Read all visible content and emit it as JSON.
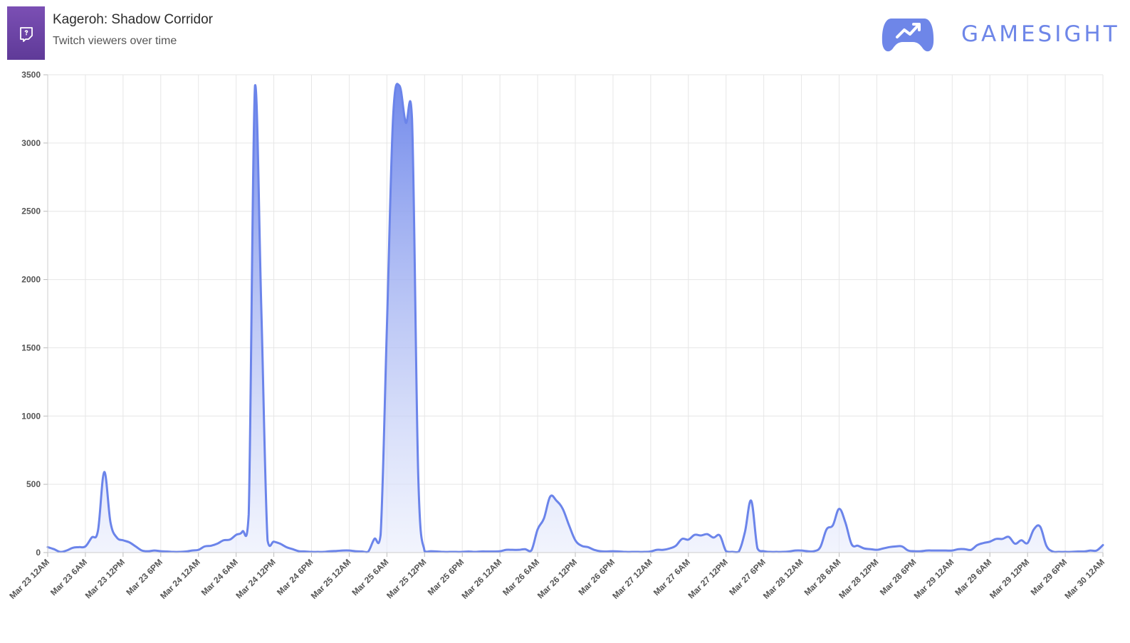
{
  "header": {
    "title": "Kageroh: Shadow Corridor",
    "subtitle": "Twitch viewers over time",
    "icon": "twitch-icon",
    "brand": "GAMESIGHT",
    "brand_icon": "gamepad-trend-icon"
  },
  "colors": {
    "line": "#6b84ea",
    "fill_top": "#6b84ea",
    "fill_bottom": "#e9edfc",
    "grid": "#e6e6e6",
    "brand": "#6e86e8",
    "game_icon_bg": "#6a43a6"
  },
  "chart_data": {
    "type": "area",
    "title": "",
    "xlabel": "",
    "ylabel": "",
    "ylim": [
      0,
      3500
    ],
    "yticks": [
      0,
      500,
      1000,
      1500,
      2000,
      2500,
      3000,
      3500
    ],
    "grid": true,
    "x_tick_labels": [
      "Mar 23 12AM",
      "Mar 23 6AM",
      "Mar 23 12PM",
      "Mar 23 6PM",
      "Mar 24 12AM",
      "Mar 24 6AM",
      "Mar 24 12PM",
      "Mar 24 6PM",
      "Mar 25 12AM",
      "Mar 25 6AM",
      "Mar 25 12PM",
      "Mar 25 6PM",
      "Mar 26 12AM",
      "Mar 26 6AM",
      "Mar 26 12PM",
      "Mar 26 6PM",
      "Mar 27 12AM",
      "Mar 27 6AM",
      "Mar 27 12PM",
      "Mar 27 6PM",
      "Mar 28 12AM",
      "Mar 28 6AM",
      "Mar 28 12PM",
      "Mar 28 6PM",
      "Mar 29 12AM",
      "Mar 29 6AM",
      "Mar 29 12PM",
      "Mar 29 6PM",
      "Mar 30 12AM"
    ],
    "x_unit": "hours since Mar 23 12AM",
    "series": [
      {
        "name": "Twitch viewers",
        "points": [
          [
            0,
            40
          ],
          [
            1,
            25
          ],
          [
            2,
            5
          ],
          [
            3,
            15
          ],
          [
            4,
            35
          ],
          [
            5,
            40
          ],
          [
            6,
            45
          ],
          [
            7,
            110
          ],
          [
            8,
            160
          ],
          [
            9,
            590
          ],
          [
            10,
            220
          ],
          [
            11,
            110
          ],
          [
            12,
            90
          ],
          [
            13,
            75
          ],
          [
            14,
            45
          ],
          [
            15,
            15
          ],
          [
            16,
            10
          ],
          [
            17,
            15
          ],
          [
            18,
            10
          ],
          [
            19,
            8
          ],
          [
            20,
            5
          ],
          [
            21,
            5
          ],
          [
            22,
            8
          ],
          [
            23,
            15
          ],
          [
            24,
            20
          ],
          [
            25,
            45
          ],
          [
            26,
            50
          ],
          [
            27,
            65
          ],
          [
            28,
            90
          ],
          [
            29,
            95
          ],
          [
            30,
            130
          ],
          [
            31,
            155
          ],
          [
            32,
            280
          ],
          [
            33,
            3420
          ],
          [
            34,
            1800
          ],
          [
            35,
            90
          ],
          [
            36,
            80
          ],
          [
            37,
            65
          ],
          [
            38,
            40
          ],
          [
            39,
            25
          ],
          [
            40,
            10
          ],
          [
            41,
            8
          ],
          [
            42,
            5
          ],
          [
            43,
            5
          ],
          [
            44,
            5
          ],
          [
            45,
            10
          ],
          [
            46,
            12
          ],
          [
            47,
            15
          ],
          [
            48,
            15
          ],
          [
            49,
            10
          ],
          [
            50,
            8
          ],
          [
            51,
            5
          ],
          [
            52,
            100
          ],
          [
            53,
            130
          ],
          [
            54,
            1650
          ],
          [
            55,
            3200
          ],
          [
            56,
            3420
          ],
          [
            57,
            3150
          ],
          [
            58,
            3180
          ],
          [
            59,
            550
          ],
          [
            60,
            10
          ],
          [
            61,
            10
          ],
          [
            62,
            8
          ],
          [
            63,
            5
          ],
          [
            64,
            5
          ],
          [
            65,
            5
          ],
          [
            66,
            5
          ],
          [
            67,
            8
          ],
          [
            68,
            5
          ],
          [
            69,
            8
          ],
          [
            70,
            8
          ],
          [
            71,
            8
          ],
          [
            72,
            10
          ],
          [
            73,
            20
          ],
          [
            74,
            20
          ],
          [
            75,
            20
          ],
          [
            76,
            25
          ],
          [
            77,
            15
          ],
          [
            78,
            170
          ],
          [
            79,
            250
          ],
          [
            80,
            410
          ],
          [
            81,
            380
          ],
          [
            82,
            320
          ],
          [
            83,
            200
          ],
          [
            84,
            90
          ],
          [
            85,
            50
          ],
          [
            86,
            40
          ],
          [
            87,
            20
          ],
          [
            88,
            10
          ],
          [
            89,
            8
          ],
          [
            90,
            10
          ],
          [
            91,
            8
          ],
          [
            92,
            5
          ],
          [
            93,
            5
          ],
          [
            94,
            5
          ],
          [
            95,
            5
          ],
          [
            96,
            8
          ],
          [
            97,
            20
          ],
          [
            98,
            20
          ],
          [
            99,
            30
          ],
          [
            100,
            50
          ],
          [
            101,
            100
          ],
          [
            102,
            95
          ],
          [
            103,
            130
          ],
          [
            104,
            125
          ],
          [
            105,
            135
          ],
          [
            106,
            110
          ],
          [
            107,
            125
          ],
          [
            108,
            10
          ],
          [
            109,
            5
          ],
          [
            110,
            5
          ],
          [
            111,
            150
          ],
          [
            112,
            380
          ],
          [
            113,
            30
          ],
          [
            114,
            10
          ],
          [
            115,
            5
          ],
          [
            116,
            5
          ],
          [
            117,
            5
          ],
          [
            118,
            8
          ],
          [
            119,
            15
          ],
          [
            120,
            15
          ],
          [
            121,
            10
          ],
          [
            122,
            10
          ],
          [
            123,
            40
          ],
          [
            124,
            170
          ],
          [
            125,
            200
          ],
          [
            126,
            320
          ],
          [
            127,
            220
          ],
          [
            128,
            60
          ],
          [
            129,
            50
          ],
          [
            130,
            30
          ],
          [
            131,
            25
          ],
          [
            132,
            20
          ],
          [
            133,
            30
          ],
          [
            134,
            40
          ],
          [
            135,
            45
          ],
          [
            136,
            45
          ],
          [
            137,
            15
          ],
          [
            138,
            10
          ],
          [
            139,
            10
          ],
          [
            140,
            15
          ],
          [
            141,
            15
          ],
          [
            142,
            15
          ],
          [
            143,
            15
          ],
          [
            144,
            15
          ],
          [
            145,
            25
          ],
          [
            146,
            25
          ],
          [
            147,
            20
          ],
          [
            148,
            55
          ],
          [
            149,
            70
          ],
          [
            150,
            80
          ],
          [
            151,
            100
          ],
          [
            152,
            100
          ],
          [
            153,
            115
          ],
          [
            154,
            65
          ],
          [
            155,
            90
          ],
          [
            156,
            70
          ],
          [
            157,
            170
          ],
          [
            158,
            190
          ],
          [
            159,
            50
          ],
          [
            160,
            8
          ],
          [
            161,
            5
          ],
          [
            162,
            5
          ],
          [
            163,
            5
          ],
          [
            164,
            8
          ],
          [
            165,
            8
          ],
          [
            166,
            15
          ],
          [
            167,
            15
          ],
          [
            168,
            55
          ]
        ]
      }
    ]
  }
}
